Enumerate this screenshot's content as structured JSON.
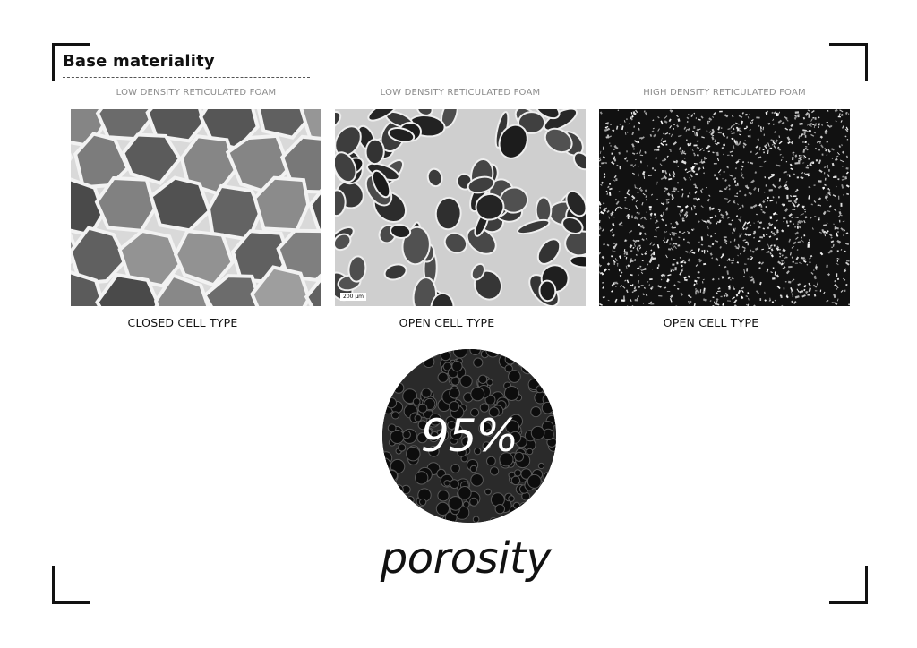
{
  "section_title": "Base materiality",
  "panels": [
    {
      "label": "LOW DENSITY RETICULATED FOAM",
      "caption": "CLOSED CELL TYPE"
    },
    {
      "label": "LOW DENSITY RETICULATED FOAM",
      "caption": "OPEN CELL TYPE",
      "scale_text": "200 µm"
    },
    {
      "label": "HIGH DENSITY RETICULATED FOAM",
      "caption": "OPEN CELL TYPE"
    }
  ],
  "porosity": {
    "value": "95%",
    "label": "porosity"
  }
}
